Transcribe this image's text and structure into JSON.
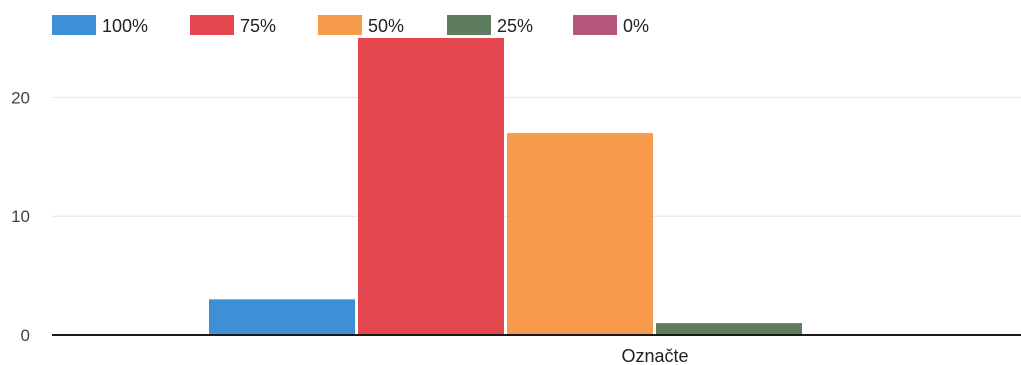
{
  "chart_data": {
    "type": "bar",
    "categories": [
      "Označte"
    ],
    "series": [
      {
        "name": "100%",
        "values": [
          3
        ],
        "color": "#3d8fd6"
      },
      {
        "name": "75%",
        "values": [
          25
        ],
        "color": "#e4474f"
      },
      {
        "name": "50%",
        "values": [
          17
        ],
        "color": "#f79a4d"
      },
      {
        "name": "25%",
        "values": [
          1
        ],
        "color": "#5e7d5e"
      },
      {
        "name": "0%",
        "values": [
          0
        ],
        "color": "#b5577d"
      }
    ],
    "ylim": [
      0,
      25
    ],
    "yticks": [
      0,
      10,
      20
    ],
    "grid": true,
    "legend_position": "top-left"
  }
}
